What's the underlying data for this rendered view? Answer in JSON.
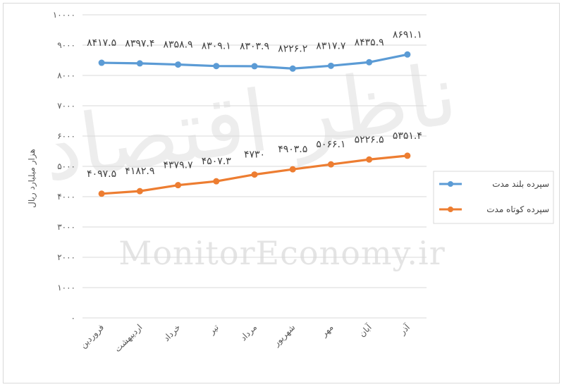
{
  "chart_data": {
    "type": "line",
    "title": "",
    "ylabel": "هزار میلیارد ریال",
    "xlabel": "",
    "ylim": [
      0,
      10000
    ],
    "yticks": [
      0,
      1000,
      2000,
      3000,
      4000,
      5000,
      6000,
      7000,
      8000,
      9000,
      10000
    ],
    "ytick_labels": [
      "۰",
      "۱۰۰۰",
      "۲۰۰۰",
      "۳۰۰۰",
      "۴۰۰۰",
      "۵۰۰۰",
      "۶۰۰۰",
      "۷۰۰۰",
      "۸۰۰۰",
      "۹۰۰۰",
      "۱۰۰۰۰"
    ],
    "grid": true,
    "legend_position": "right",
    "categories": [
      "فروردین",
      "اردیبهشت",
      "خرداد",
      "تیر",
      "مرداد",
      "شهریور",
      "مهر",
      "آبان",
      "آذر"
    ],
    "series": [
      {
        "name": "سپرده بلند مدت",
        "color": "#5b9bd5",
        "values": [
          8417.5,
          8397.4,
          8358.9,
          8309.1,
          8303.9,
          8226.2,
          8317.7,
          8435.9,
          8691.1
        ],
        "labels": [
          "۸۴۱۷.۵",
          "۸۳۹۷.۴",
          "۸۳۵۸.۹",
          "۸۳۰۹.۱",
          "۸۳۰۳.۹",
          "۸۲۲۶.۲",
          "۸۳۱۷.۷",
          "۸۴۳۵.۹",
          "۸۶۹۱.۱"
        ]
      },
      {
        "name": "سپرده کوتاه مدت",
        "color": "#ed7d31",
        "values": [
          4097.5,
          4182.9,
          4379.7,
          4507.3,
          4730,
          4903.5,
          5066.1,
          5226.5,
          5351.4
        ],
        "labels": [
          "۴۰۹۷.۵",
          "۴۱۸۲.۹",
          "۴۳۷۹.۷",
          "۴۵۰۷.۳",
          "۴۷۳۰",
          "۴۹۰۳.۵",
          "۵۰۶۶.۱",
          "۵۲۲۶.۵",
          "۵۳۵۱.۴"
        ]
      }
    ]
  },
  "watermark": {
    "text": "MonitorEconomy.ir",
    "logo_text": "ناظر اقتصاد"
  }
}
